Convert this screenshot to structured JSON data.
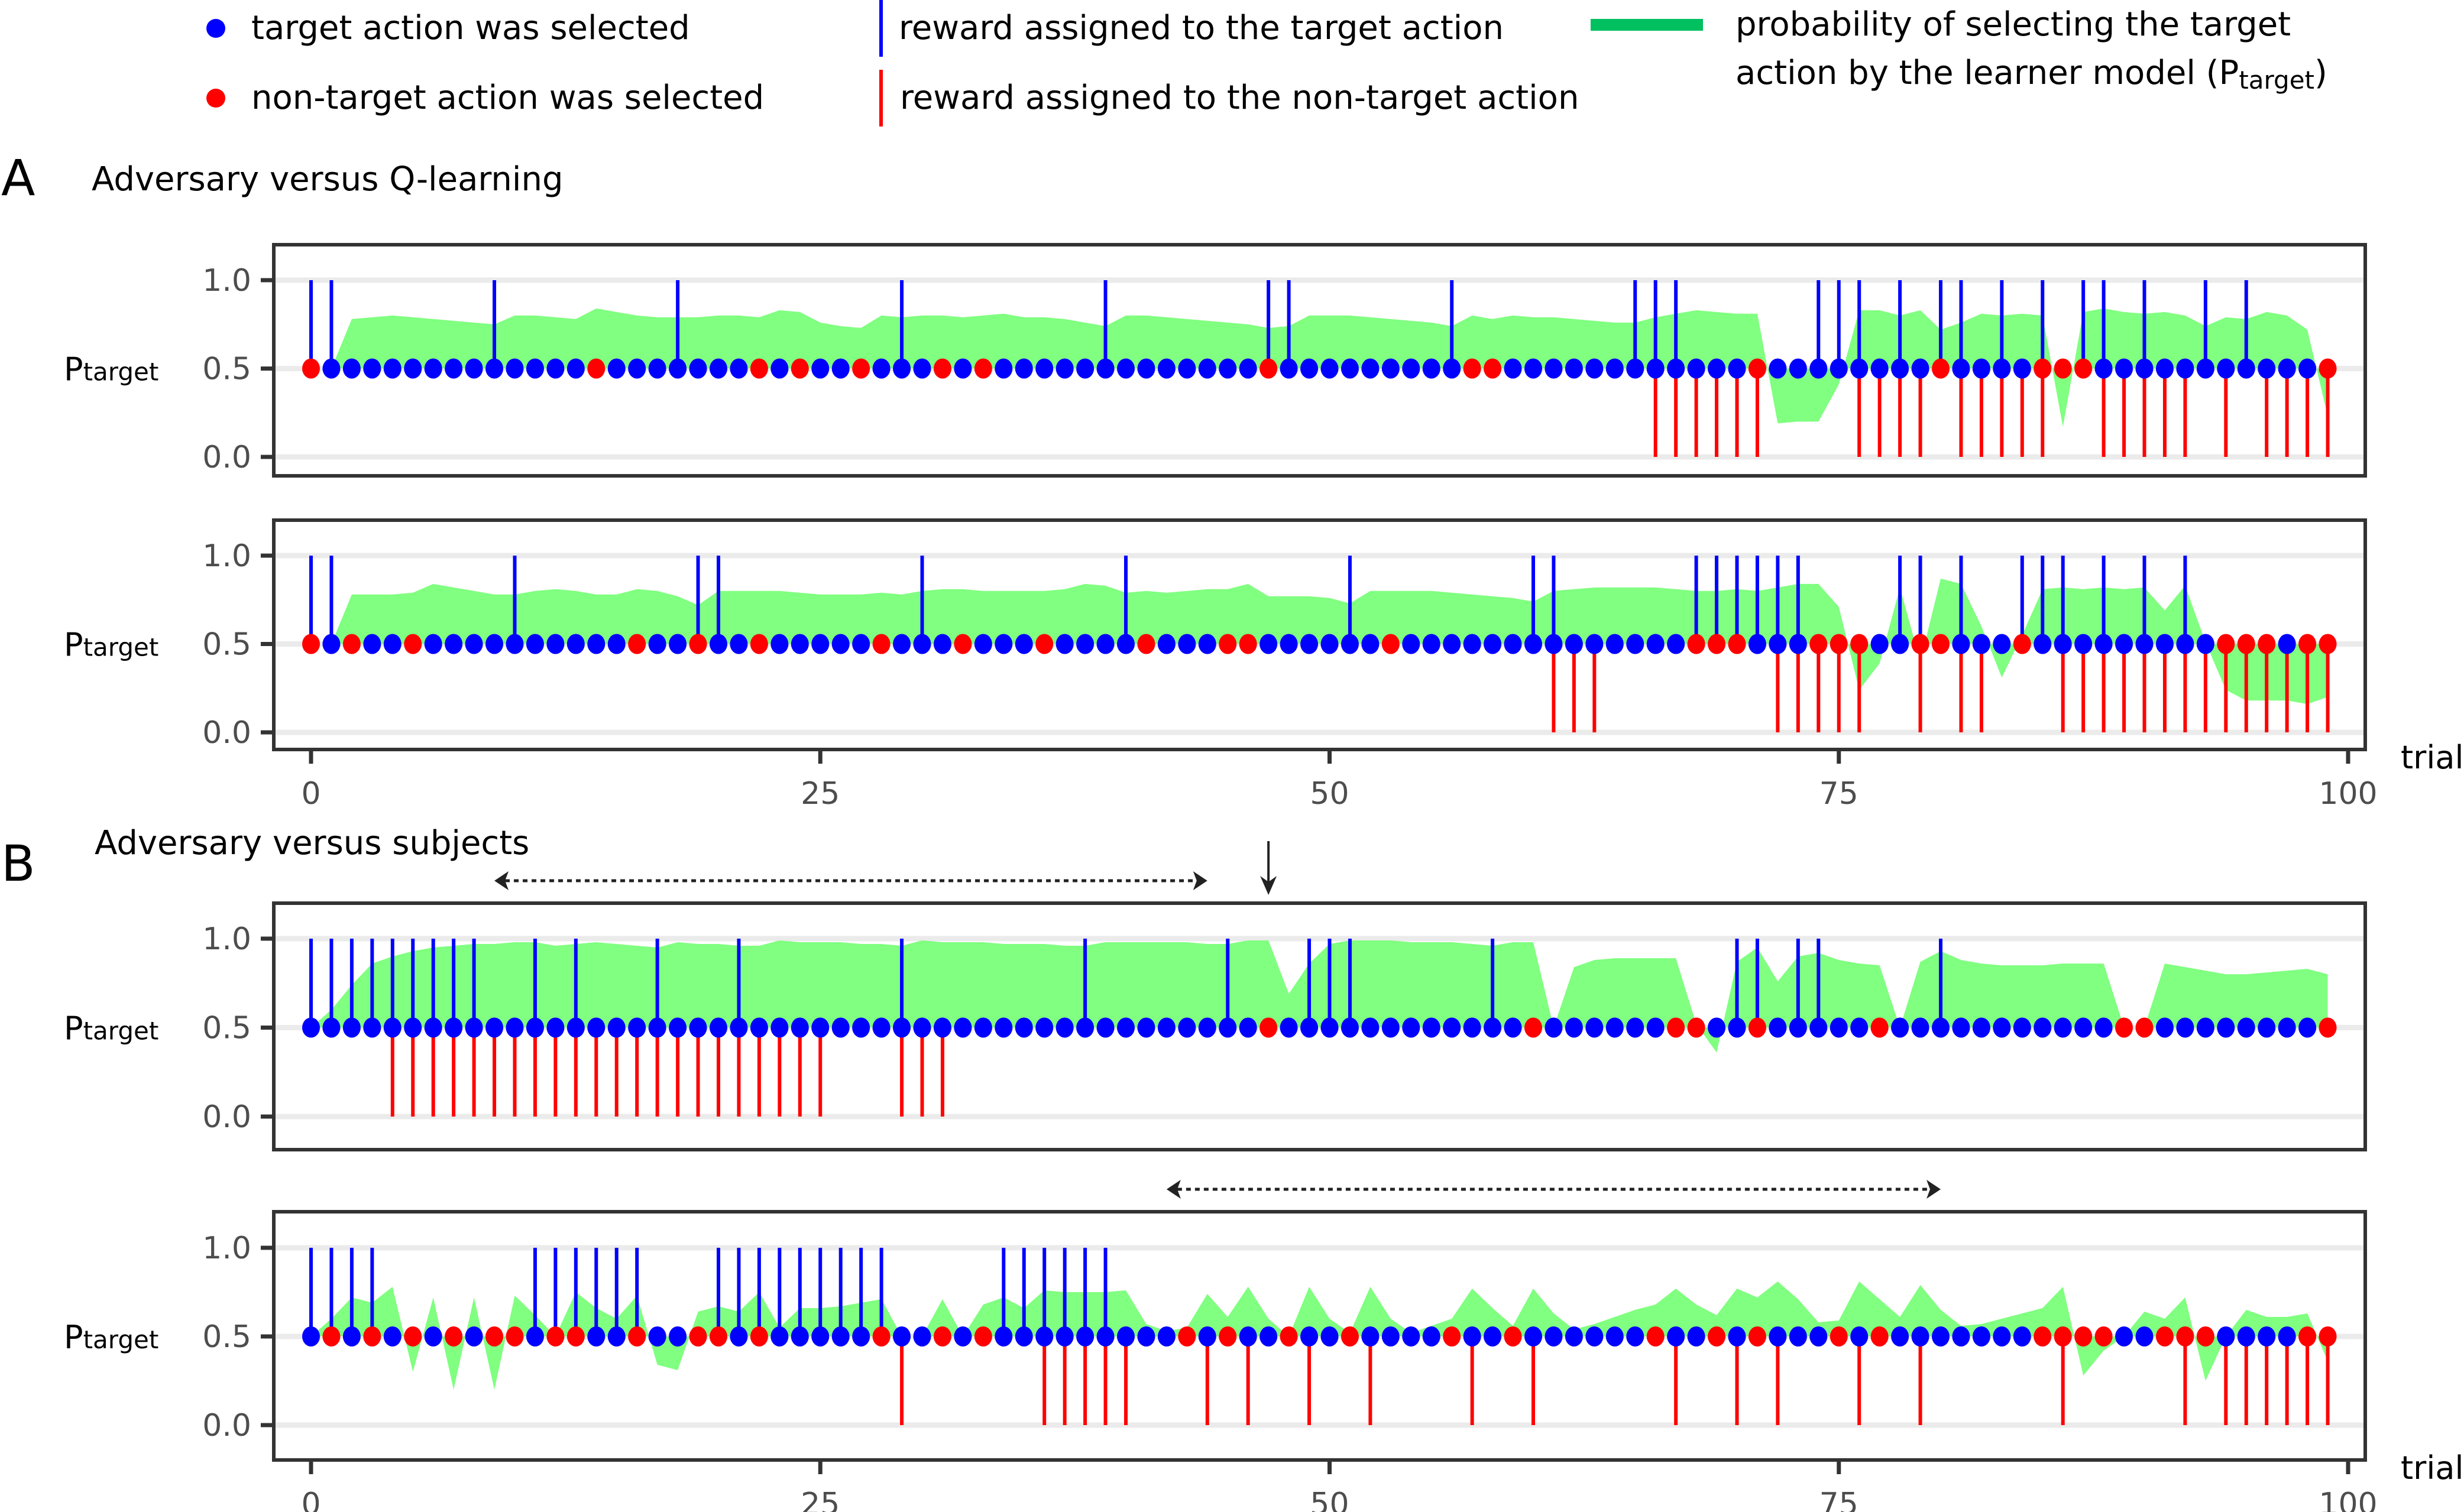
{
  "legend": {
    "items": [
      {
        "kind": "dot",
        "color": "#0000ff",
        "label": "target action was selected"
      },
      {
        "kind": "dot",
        "color": "#ff0000",
        "label": "non-target action was selected"
      },
      {
        "kind": "vline",
        "color": "#0000ff",
        "label": "reward assigned to the target action"
      },
      {
        "kind": "vline",
        "color": "#ff0000",
        "label": "reward assigned to the non-target action"
      },
      {
        "kind": "band",
        "color": "#00c060",
        "label_line1": "probability of selecting the target",
        "label_line2_main": "action by the learner model (P",
        "label_line2_sub": "target",
        "label_line2_end": ")"
      }
    ]
  },
  "sections": [
    {
      "letter": "A",
      "title": "Adversary versus Q-learning"
    },
    {
      "letter": "B",
      "title": "Adversary versus subjects"
    }
  ],
  "colors": {
    "target": "#0000ff",
    "nontarget": "#ff0000",
    "prob_fill": "#80ff80",
    "grid": "#ebebeb",
    "frame": "#333333"
  },
  "chart_data": [
    {
      "id": "A1",
      "section": "A",
      "type": "area",
      "title": "",
      "xlabel": "trial",
      "ylabel_main": "P",
      "ylabel_sub": "target",
      "xlim": [
        0,
        100
      ],
      "ylim": [
        0,
        1
      ],
      "yticks": [
        "0.0",
        "0.5",
        "1.0"
      ],
      "xticks": [
        "0",
        "25",
        "50",
        "75",
        "100"
      ],
      "show_xaxis": false,
      "grid": true,
      "nontarget_selected": [
        0,
        14,
        22,
        24,
        27,
        31,
        33,
        47,
        57,
        58,
        71,
        80,
        85,
        86,
        87,
        99
      ],
      "reward_target": [
        0,
        1,
        9,
        18,
        29,
        39,
        47,
        48,
        56,
        65,
        66,
        67,
        74,
        75,
        76,
        78,
        80,
        81,
        83,
        85,
        87,
        88,
        90,
        93,
        95
      ],
      "reward_nontarget": [
        66,
        67,
        68,
        69,
        70,
        71,
        76,
        77,
        78,
        79,
        81,
        82,
        83,
        84,
        85,
        88,
        89,
        90,
        91,
        92,
        94,
        96,
        97,
        98,
        99
      ],
      "p_target": [
        0.5,
        0.5,
        0.78,
        0.79,
        0.8,
        0.79,
        0.78,
        0.77,
        0.76,
        0.75,
        0.8,
        0.8,
        0.79,
        0.78,
        0.84,
        0.82,
        0.8,
        0.79,
        0.79,
        0.79,
        0.8,
        0.8,
        0.79,
        0.83,
        0.82,
        0.76,
        0.74,
        0.73,
        0.8,
        0.79,
        0.8,
        0.8,
        0.79,
        0.8,
        0.81,
        0.79,
        0.79,
        0.78,
        0.76,
        0.74,
        0.8,
        0.8,
        0.79,
        0.78,
        0.77,
        0.76,
        0.75,
        0.73,
        0.74,
        0.8,
        0.8,
        0.8,
        0.79,
        0.78,
        0.77,
        0.76,
        0.74,
        0.8,
        0.78,
        0.8,
        0.79,
        0.79,
        0.78,
        0.77,
        0.76,
        0.76,
        0.79,
        0.81,
        0.83,
        0.82,
        0.81,
        0.81,
        0.19,
        0.2,
        0.2,
        0.41,
        0.83,
        0.83,
        0.8,
        0.83,
        0.72,
        0.76,
        0.81,
        0.8,
        0.81,
        0.8,
        0.17,
        0.82,
        0.84,
        0.82,
        0.81,
        0.82,
        0.8,
        0.74,
        0.79,
        0.78,
        0.82,
        0.8,
        0.72,
        0.23
      ]
    },
    {
      "id": "A2",
      "section": "A",
      "type": "area",
      "title": "",
      "xlabel": "trial",
      "ylabel_main": "P",
      "ylabel_sub": "target",
      "xlim": [
        0,
        100
      ],
      "ylim": [
        0,
        1
      ],
      "yticks": [
        "0.0",
        "0.5",
        "1.0"
      ],
      "xticks": [
        "0",
        "25",
        "50",
        "75",
        "100"
      ],
      "show_xaxis": true,
      "grid": true,
      "nontarget_selected": [
        0,
        2,
        5,
        16,
        19,
        22,
        28,
        32,
        36,
        41,
        45,
        46,
        53,
        68,
        69,
        70,
        74,
        75,
        76,
        79,
        80,
        84,
        94,
        95,
        96,
        98,
        99
      ],
      "reward_target": [
        0,
        1,
        10,
        19,
        20,
        30,
        40,
        51,
        60,
        61,
        68,
        69,
        70,
        71,
        72,
        73,
        78,
        79,
        81,
        84,
        85,
        86,
        88,
        90,
        92
      ],
      "reward_nontarget": [
        61,
        62,
        63,
        72,
        73,
        74,
        75,
        76,
        79,
        81,
        82,
        86,
        87,
        88,
        89,
        90,
        91,
        92,
        93,
        94,
        95,
        96,
        97,
        98,
        99
      ],
      "p_target": [
        0.5,
        0.5,
        0.78,
        0.78,
        0.78,
        0.79,
        0.84,
        0.82,
        0.8,
        0.78,
        0.78,
        0.8,
        0.81,
        0.8,
        0.78,
        0.78,
        0.81,
        0.8,
        0.77,
        0.72,
        0.8,
        0.8,
        0.8,
        0.8,
        0.79,
        0.78,
        0.78,
        0.78,
        0.79,
        0.78,
        0.8,
        0.81,
        0.81,
        0.8,
        0.8,
        0.8,
        0.8,
        0.81,
        0.84,
        0.83,
        0.79,
        0.8,
        0.79,
        0.8,
        0.81,
        0.81,
        0.84,
        0.77,
        0.77,
        0.77,
        0.76,
        0.73,
        0.8,
        0.8,
        0.8,
        0.8,
        0.79,
        0.78,
        0.77,
        0.76,
        0.74,
        0.8,
        0.81,
        0.82,
        0.82,
        0.82,
        0.82,
        0.81,
        0.8,
        0.8,
        0.81,
        0.8,
        0.82,
        0.84,
        0.84,
        0.71,
        0.24,
        0.39,
        0.82,
        0.4,
        0.87,
        0.84,
        0.6,
        0.31,
        0.55,
        0.81,
        0.82,
        0.81,
        0.82,
        0.81,
        0.82,
        0.69,
        0.83,
        0.51,
        0.24,
        0.18,
        0.18,
        0.18,
        0.16,
        0.2
      ]
    },
    {
      "id": "B1",
      "section": "B",
      "type": "area",
      "title": "",
      "xlabel": "trial",
      "ylabel_main": "P",
      "ylabel_sub": "target",
      "xlim": [
        0,
        100
      ],
      "ylim": [
        0,
        1
      ],
      "yticks": [
        "0.0",
        "0.5",
        "1.0"
      ],
      "xticks": [
        "0",
        "25",
        "50",
        "75",
        "100"
      ],
      "show_xaxis": false,
      "grid": true,
      "annotations": [
        {
          "kind": "double-arrow-dotted",
          "from_trial": 9,
          "to_trial": 44
        },
        {
          "kind": "down-arrow",
          "at_trial": 47
        }
      ],
      "nontarget_selected": [
        47,
        60,
        67,
        68,
        71,
        77,
        89,
        90,
        99
      ],
      "reward_target": [
        0,
        1,
        2,
        3,
        4,
        5,
        6,
        7,
        8,
        11,
        13,
        17,
        21,
        29,
        38,
        45,
        49,
        50,
        51,
        58,
        70,
        71,
        73,
        74,
        80
      ],
      "reward_nontarget": [
        4,
        5,
        6,
        7,
        8,
        9,
        10,
        11,
        12,
        13,
        14,
        15,
        16,
        17,
        18,
        19,
        20,
        21,
        22,
        23,
        24,
        25,
        29,
        30,
        31
      ],
      "p_target": [
        0.5,
        0.6,
        0.74,
        0.86,
        0.9,
        0.93,
        0.95,
        0.96,
        0.97,
        0.97,
        0.98,
        0.98,
        0.96,
        0.97,
        0.98,
        0.97,
        0.96,
        0.95,
        0.98,
        0.97,
        0.97,
        0.96,
        0.96,
        0.99,
        0.98,
        0.98,
        0.98,
        0.97,
        0.97,
        0.96,
        0.99,
        0.98,
        0.98,
        0.98,
        0.97,
        0.97,
        0.97,
        0.96,
        0.96,
        0.98,
        0.98,
        0.98,
        0.98,
        0.98,
        0.97,
        0.97,
        0.99,
        0.99,
        0.69,
        0.86,
        0.97,
        0.99,
        0.99,
        0.99,
        0.98,
        0.98,
        0.98,
        0.97,
        0.96,
        0.98,
        0.98,
        0.5,
        0.84,
        0.88,
        0.89,
        0.89,
        0.89,
        0.89,
        0.52,
        0.36,
        0.87,
        0.95,
        0.76,
        0.9,
        0.92,
        0.88,
        0.86,
        0.85,
        0.5,
        0.87,
        0.93,
        0.88,
        0.86,
        0.85,
        0.85,
        0.85,
        0.86,
        0.86,
        0.86,
        0.5,
        0.5,
        0.86,
        0.84,
        0.82,
        0.8,
        0.8,
        0.81,
        0.82,
        0.83,
        0.8
      ]
    },
    {
      "id": "B2",
      "section": "B",
      "type": "area",
      "title": "",
      "xlabel": "trial",
      "ylabel_main": "P",
      "ylabel_sub": "target",
      "xlim": [
        0,
        100
      ],
      "ylim": [
        0,
        1
      ],
      "yticks": [
        "0.0",
        "0.5",
        "1.0"
      ],
      "xticks": [
        "0",
        "25",
        "50",
        "75",
        "100"
      ],
      "show_xaxis": true,
      "grid": true,
      "annotations": [
        {
          "kind": "double-arrow-dotted",
          "from_trial": 42,
          "to_trial": 80
        }
      ],
      "nontarget_selected": [
        1,
        3,
        5,
        7,
        9,
        10,
        12,
        13,
        16,
        19,
        20,
        22,
        28,
        31,
        33,
        43,
        45,
        48,
        51,
        56,
        59,
        66,
        69,
        71,
        75,
        77,
        85,
        86,
        87,
        88,
        91,
        92,
        93,
        98,
        99
      ],
      "reward_target": [
        0,
        1,
        2,
        3,
        11,
        12,
        13,
        14,
        15,
        16,
        20,
        21,
        22,
        23,
        24,
        25,
        26,
        27,
        28,
        34,
        35,
        36,
        37,
        38,
        39
      ],
      "reward_nontarget": [
        29,
        36,
        37,
        38,
        39,
        40,
        44,
        46,
        49,
        52,
        57,
        60,
        67,
        70,
        72,
        76,
        79,
        86,
        92,
        94,
        95,
        96,
        97,
        98,
        99
      ],
      "p_target": [
        0.5,
        0.6,
        0.72,
        0.69,
        0.78,
        0.3,
        0.72,
        0.2,
        0.72,
        0.2,
        0.73,
        0.62,
        0.5,
        0.75,
        0.66,
        0.6,
        0.73,
        0.34,
        0.31,
        0.64,
        0.67,
        0.64,
        0.75,
        0.55,
        0.66,
        0.66,
        0.67,
        0.69,
        0.71,
        0.5,
        0.5,
        0.71,
        0.5,
        0.68,
        0.72,
        0.66,
        0.76,
        0.75,
        0.75,
        0.75,
        0.76,
        0.57,
        0.53,
        0.55,
        0.74,
        0.61,
        0.78,
        0.6,
        0.5,
        0.78,
        0.6,
        0.52,
        0.78,
        0.6,
        0.52,
        0.56,
        0.6,
        0.77,
        0.66,
        0.56,
        0.77,
        0.63,
        0.54,
        0.57,
        0.61,
        0.65,
        0.68,
        0.77,
        0.68,
        0.62,
        0.77,
        0.72,
        0.81,
        0.71,
        0.58,
        0.59,
        0.81,
        0.71,
        0.61,
        0.79,
        0.65,
        0.56,
        0.57,
        0.6,
        0.63,
        0.66,
        0.78,
        0.28,
        0.42,
        0.5,
        0.64,
        0.6,
        0.72,
        0.25,
        0.5,
        0.65,
        0.61,
        0.61,
        0.63,
        0.36
      ]
    }
  ]
}
